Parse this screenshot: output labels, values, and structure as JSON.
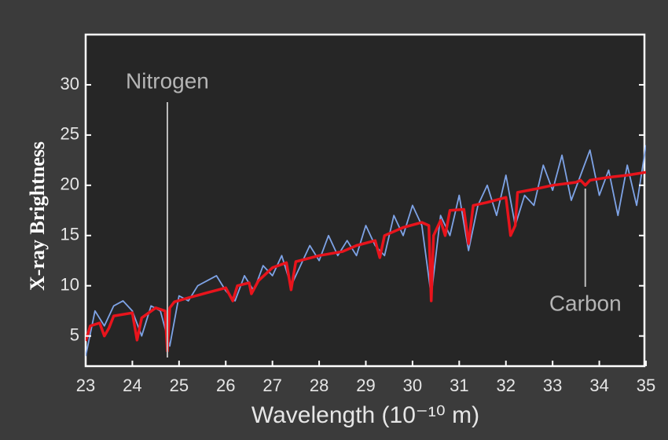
{
  "chart_data": {
    "type": "line",
    "xlabel": "Wavelength (10⁻¹⁰ m)",
    "ylabel": "X-ray Brightness",
    "xlim": [
      23,
      35
    ],
    "ylim": [
      2,
      35
    ],
    "xticks": [
      23,
      24,
      25,
      26,
      27,
      28,
      29,
      30,
      31,
      32,
      33,
      34,
      35
    ],
    "yticks": [
      5,
      10,
      15,
      20,
      25,
      30
    ],
    "annotations": [
      {
        "text": "Nitrogen",
        "x": 24.75
      },
      {
        "text": "Carbon",
        "x": 33.7
      }
    ],
    "series": [
      {
        "color": "#7ea3e6",
        "width": 1.8,
        "x": [
          23.0,
          23.2,
          23.4,
          23.6,
          23.8,
          24.0,
          24.2,
          24.4,
          24.6,
          24.8,
          25.0,
          25.2,
          25.4,
          25.6,
          25.8,
          26.0,
          26.2,
          26.4,
          26.6,
          26.8,
          27.0,
          27.2,
          27.4,
          27.6,
          27.8,
          28.0,
          28.2,
          28.4,
          28.6,
          28.8,
          29.0,
          29.2,
          29.4,
          29.6,
          29.8,
          30.0,
          30.2,
          30.4,
          30.6,
          30.8,
          31.0,
          31.2,
          31.4,
          31.6,
          31.8,
          32.0,
          32.2,
          32.4,
          32.6,
          32.8,
          33.0,
          33.2,
          33.4,
          33.6,
          33.8,
          34.0,
          34.2,
          34.4,
          34.6,
          34.8,
          35.0
        ],
        "values": [
          3,
          7.5,
          6,
          8,
          8.5,
          7.5,
          5,
          8,
          7.5,
          4,
          9,
          8.5,
          10,
          10.5,
          11,
          9.5,
          8.5,
          11,
          9.5,
          12,
          11,
          13,
          10,
          12,
          14,
          12.5,
          15,
          13,
          14.5,
          13,
          16,
          14,
          13,
          17,
          15,
          18,
          16,
          9,
          17,
          15,
          19,
          13.5,
          18,
          20,
          17,
          21,
          16,
          19,
          18,
          22,
          19.5,
          23,
          18.5,
          21,
          23.5,
          19,
          21.5,
          17,
          22,
          18,
          24
        ]
      },
      {
        "color": "#e8141c",
        "width": 3.5,
        "x": [
          23,
          23.1,
          23.3,
          23.4,
          23.5,
          23.6,
          24.0,
          24.1,
          24.2,
          24.5,
          24.7,
          24.75,
          24.8,
          24.9,
          25.2,
          25.6,
          26.0,
          26.15,
          26.25,
          26.5,
          26.55,
          26.7,
          27.0,
          27.3,
          27.4,
          27.5,
          28.0,
          28.5,
          28.8,
          29.2,
          29.3,
          29.4,
          29.8,
          30.2,
          30.35,
          30.4,
          30.45,
          30.6,
          30.7,
          30.8,
          31.1,
          31.2,
          31.3,
          31.6,
          32.0,
          32.1,
          32.2,
          32.25,
          32.6,
          33.0,
          33.5,
          33.6,
          33.7,
          33.8,
          34.2,
          34.6,
          35.0
        ],
        "values": [
          4.5,
          6,
          6.3,
          5,
          5.8,
          7,
          7.3,
          4.6,
          6.8,
          7.8,
          7.5,
          3.5,
          7.8,
          8.4,
          8.8,
          9.3,
          9.8,
          8.5,
          10,
          10.3,
          9.2,
          10.5,
          11.8,
          12.3,
          9.6,
          12.4,
          13,
          13.4,
          14,
          14.5,
          12.8,
          15,
          15.8,
          16.3,
          16,
          8.5,
          15,
          16.5,
          15,
          17.5,
          17.6,
          14.2,
          18,
          18.3,
          18.8,
          15,
          16,
          19.3,
          19.6,
          20,
          20.3,
          20.5,
          20,
          20.5,
          20.8,
          21,
          21.3
        ]
      }
    ]
  }
}
